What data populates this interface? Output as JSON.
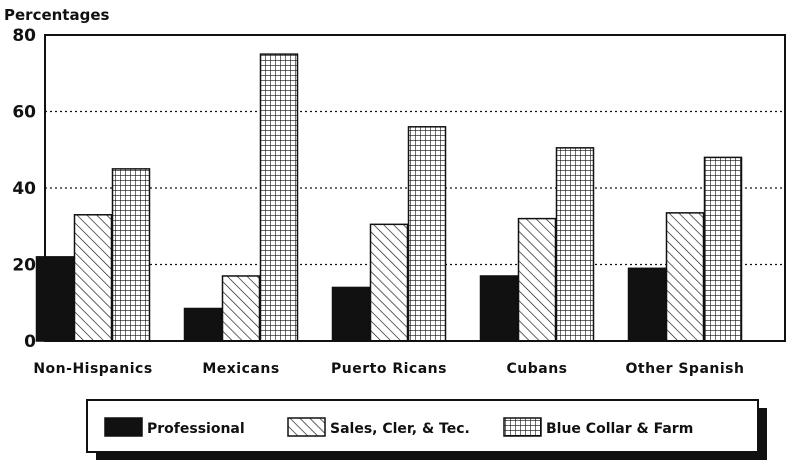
{
  "chart_data": {
    "type": "bar",
    "ylabel": "Percentages",
    "xlabel": "",
    "title": "",
    "ylim": [
      0,
      80
    ],
    "yticks": [
      "0",
      "20",
      "40",
      "60",
      "80"
    ],
    "grid": true,
    "legend_position": "bottom",
    "categories": [
      "Non-Hispanics",
      "Mexicans",
      "Puerto Ricans",
      "Cubans",
      "Other Spanish"
    ],
    "series": [
      {
        "name": "Professional",
        "values": [
          22,
          8.5,
          14,
          17,
          19
        ]
      },
      {
        "name": "Sales, Cler, & Tec.",
        "values": [
          33,
          17,
          30.5,
          32,
          33.5
        ]
      },
      {
        "name": "Blue Collar & Farm",
        "values": [
          45,
          75,
          56,
          50.5,
          48
        ]
      }
    ]
  }
}
